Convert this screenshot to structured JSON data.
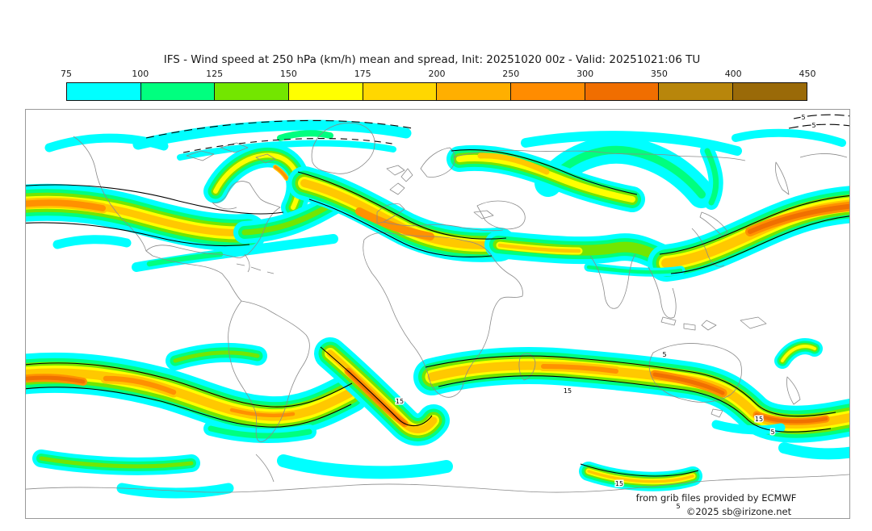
{
  "title": "IFS - Wind speed at 250 hPa (km/h) mean and spread, Init: 20251020 00z - Valid: 20251021:06 TU",
  "colorbar": {
    "ticks": [
      "75",
      "100",
      "125",
      "150",
      "175",
      "200",
      "250",
      "300",
      "350",
      "400",
      "450"
    ],
    "segment_colors": [
      "#00FFFF",
      "#00FF7F",
      "#73E600",
      "#FFFF00",
      "#FFD700",
      "#FFAF00",
      "#FF8C00",
      "#F06E00",
      "#B8860B",
      "#9A6A08"
    ]
  },
  "map": {
    "wind_fill_colors": {
      "C": "#00FFFF",
      "G": "#00FF7F",
      "Y1": "#73E600",
      "Y": "#FFFF00",
      "GD": "#FFC800",
      "O": "#FF9100",
      "D": "#F07000"
    },
    "coastline_color": "#8a8a8a",
    "spread_contour_color": "#000000",
    "contour_label_low": "5",
    "contour_label_high": "15",
    "credits_line1": "from grib files provided by ECMWF",
    "credits_line2": "©2025 sb@irizone.net"
  }
}
